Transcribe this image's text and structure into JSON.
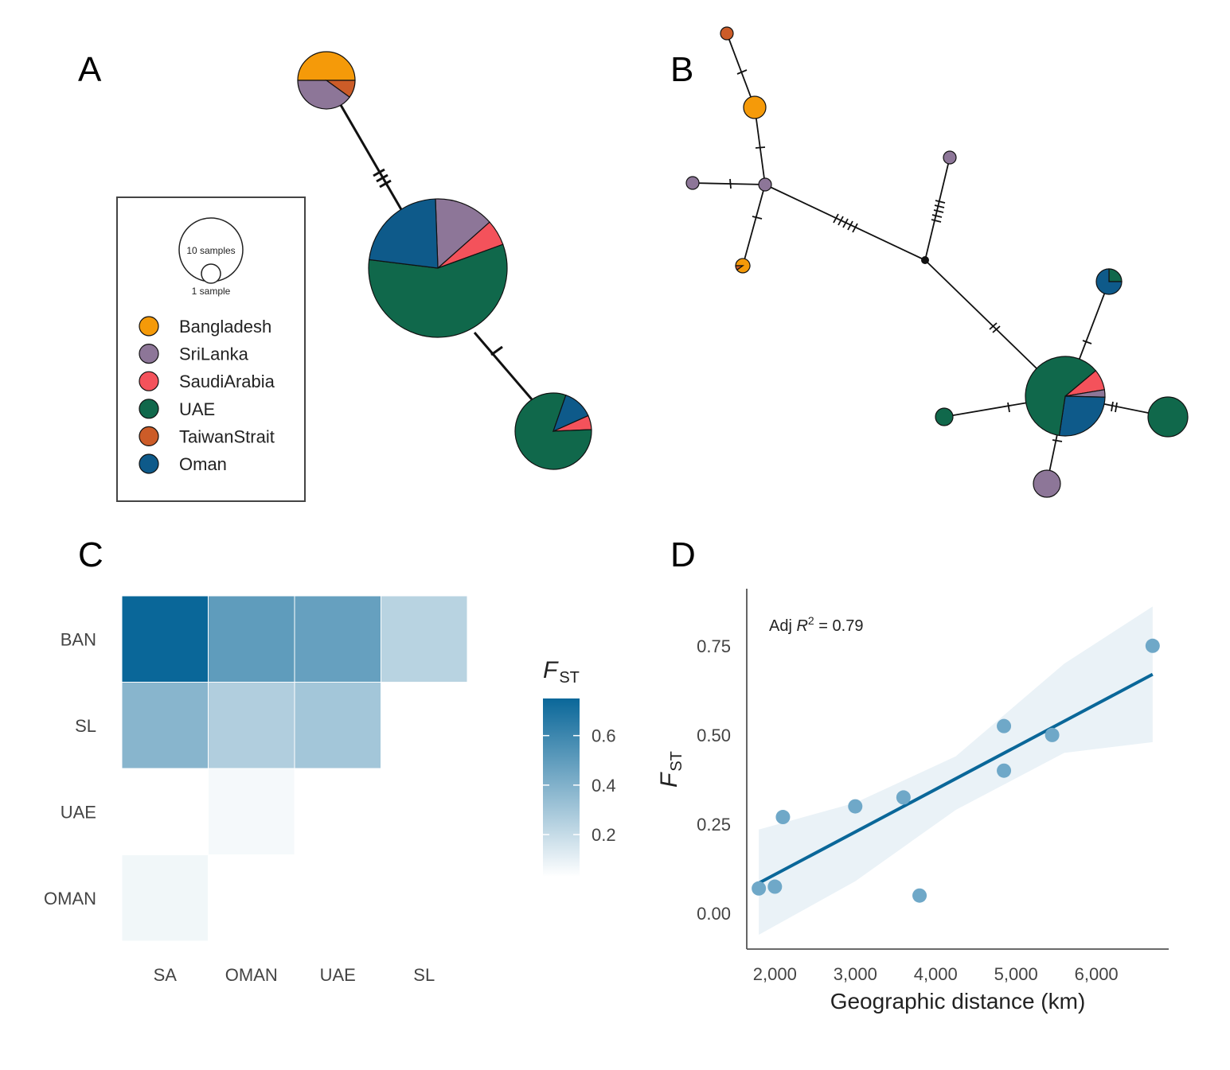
{
  "panels": {
    "a": "A",
    "b": "B",
    "c": "C",
    "d": "D"
  },
  "legend": {
    "size_large": "10 samples",
    "size_small": "1 sample",
    "populations": [
      {
        "name": "Bangladesh",
        "color": "#F59A09"
      },
      {
        "name": "SriLanka",
        "color": "#8D7698"
      },
      {
        "name": "SaudiArabia",
        "color": "#F4525B"
      },
      {
        "name": "UAE",
        "color": "#10684B"
      },
      {
        "name": "TaiwanStrait",
        "color": "#CC5C28"
      },
      {
        "name": "Oman",
        "color": "#0E5A8A"
      }
    ]
  },
  "chart_data": [
    {
      "type": "heatmap",
      "panel": "C",
      "rows": [
        "BAN",
        "SL",
        "UAE",
        "OMAN"
      ],
      "columns": [
        "SA",
        "OMAN",
        "UAE",
        "SL"
      ],
      "values": [
        [
          0.75,
          0.5,
          0.48,
          0.24
        ],
        [
          0.38,
          0.26,
          0.3,
          null
        ],
        [
          0.03,
          0.06,
          null,
          null
        ],
        [
          0.07,
          null,
          null,
          null
        ]
      ],
      "colorbar": {
        "title": "F",
        "title_sub": "ST",
        "ticks": [
          "0.6",
          "0.4",
          "0.2"
        ],
        "range": [
          0.03,
          0.75
        ],
        "color_low": "#ffffff",
        "color_high": "#0A6799"
      }
    },
    {
      "type": "scatter",
      "panel": "D",
      "x": [
        1800,
        2000,
        2100,
        3000,
        3600,
        3800,
        4850,
        4850,
        5450,
        6700
      ],
      "y": [
        0.07,
        0.075,
        0.27,
        0.3,
        0.325,
        0.05,
        0.4,
        0.525,
        0.5,
        0.75
      ],
      "xlabel": "Geographic distance (km)",
      "ylabel": "F",
      "ylabel_sub": "ST",
      "xticks": [
        "2,000",
        "3,000",
        "4,000",
        "5,000",
        "6,000"
      ],
      "yticks": [
        "0.00",
        "0.25",
        "0.50",
        "0.75"
      ],
      "xlim": [
        1650,
        6900
      ],
      "ylim": [
        -0.1,
        0.91
      ],
      "annotation_prefix": "Adj ",
      "annotation_r": "R",
      "annotation_exp": "2",
      "annotation_value": " = 0.79",
      "fit": {
        "x0": 1800,
        "y0": 0.085,
        "x1": 6700,
        "y1": 0.67
      },
      "ci_lower": [
        -0.06,
        0.09,
        0.29,
        0.45,
        0.48
      ],
      "ci_upper": [
        0.235,
        0.31,
        0.44,
        0.7,
        0.86
      ],
      "ci_x": [
        1800,
        3000,
        4250,
        5600,
        6700
      ],
      "colors": {
        "point": "#6FA8C8",
        "line": "#0A6799",
        "band": "#EAF2F7"
      }
    }
  ]
}
